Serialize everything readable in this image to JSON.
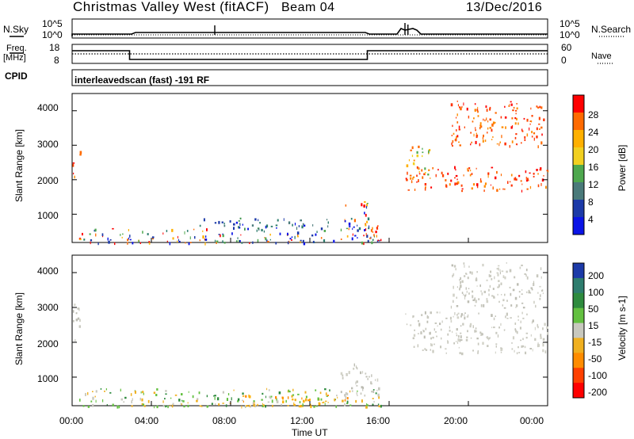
{
  "header": {
    "station": "Christmas Valley West (fitACF)",
    "beam": "Beam 04",
    "date": "13/Dec/2016"
  },
  "panels": {
    "nsky_label": "N.Sky",
    "nsearch_label": "N.Search",
    "freq_label_1": "Freq.",
    "freq_label_2": "[MHz]",
    "nave_label": "Nave",
    "cpid_label": "CPID",
    "cpid_value": "interleavedscan (fast) -191 RF",
    "nsky_ticks": [
      "10^5",
      "10^0"
    ],
    "nsearch_ticks": [
      "10^5",
      "10^0"
    ],
    "freq_ticks": [
      "18",
      "8"
    ],
    "nave_ticks": [
      "60",
      "0"
    ]
  },
  "chart_data": [
    {
      "type": "heatmap",
      "name": "power",
      "ylabel": "Slant Range [km]",
      "colorbar_label": "Power [dB]",
      "colorbar_ticks": [
        "28",
        "24",
        "20",
        "16",
        "12",
        "8",
        "4"
      ],
      "colorbar_colors": [
        "#ff0000",
        "#ff6a00",
        "#ffb000",
        "#f2d020",
        "#4ea84e",
        "#4a7a7a",
        "#1c3aa8",
        "#0a14e6"
      ],
      "yticks": [
        "4000",
        "3000",
        "2000",
        "1000"
      ],
      "ylim": [
        180,
        4500
      ],
      "xlim_hours": [
        0,
        24
      ],
      "regions": [
        {
          "t": [
            0.0,
            0.3
          ],
          "r": [
            2000,
            2600
          ],
          "level": "high"
        },
        {
          "t": [
            0.2,
            0.4
          ],
          "r": [
            2600,
            3300
          ],
          "level": "mid"
        },
        {
          "t": [
            0.3,
            15.8
          ],
          "r": [
            180,
            600
          ],
          "level": "mixed"
        },
        {
          "t": [
            6.0,
            13.0
          ],
          "r": [
            600,
            900
          ],
          "level": "low"
        },
        {
          "t": [
            13.5,
            15.0
          ],
          "r": [
            600,
            1400
          ],
          "level": "mixed"
        },
        {
          "t": [
            14.5,
            15.5
          ],
          "r": [
            300,
            700
          ],
          "level": "high"
        },
        {
          "t": [
            16.8,
            24.0
          ],
          "r": [
            1700,
            2400
          ],
          "level": "high"
        },
        {
          "t": [
            16.8,
            18.0
          ],
          "r": [
            2100,
            3000
          ],
          "level": "mid"
        },
        {
          "t": [
            19.0,
            23.8
          ],
          "r": [
            3000,
            4300
          ],
          "level": "high"
        }
      ]
    },
    {
      "type": "heatmap",
      "name": "velocity",
      "ylabel": "Slant Range [km]",
      "colorbar_label": "Velocity [m s-1]",
      "colorbar_ticks": [
        "200",
        "100",
        "50",
        "15",
        "-15",
        "-50",
        "-100",
        "-200"
      ],
      "colorbar_colors": [
        "#1c3aa8",
        "#2e7d6e",
        "#2e8b3e",
        "#63c040",
        "#c8c8be",
        "#f0b020",
        "#ff8c00",
        "#ff4000",
        "#ff0000"
      ],
      "yticks": [
        "4000",
        "3000",
        "2000",
        "1000"
      ],
      "ylim": [
        180,
        4500
      ],
      "xlim_hours": [
        0,
        24
      ],
      "regions": [
        {
          "t": [
            0.0,
            0.4
          ],
          "r": [
            2000,
            3200
          ],
          "level": "ground"
        },
        {
          "t": [
            0.3,
            15.8
          ],
          "r": [
            180,
            700
          ],
          "level": "green"
        },
        {
          "t": [
            8.5,
            14.0
          ],
          "r": [
            180,
            500
          ],
          "level": "orange"
        },
        {
          "t": [
            13.5,
            15.5
          ],
          "r": [
            500,
            1400
          ],
          "level": "ground"
        },
        {
          "t": [
            16.8,
            24.0
          ],
          "r": [
            1700,
            2900
          ],
          "level": "ground"
        },
        {
          "t": [
            19.0,
            23.8
          ],
          "r": [
            3000,
            4300
          ],
          "level": "ground"
        }
      ]
    }
  ],
  "xaxis": {
    "label": "Time UT",
    "ticks": [
      "00:00",
      "04:00",
      "08:00",
      "12:00",
      "16:00",
      "20:00",
      "00:00"
    ]
  }
}
